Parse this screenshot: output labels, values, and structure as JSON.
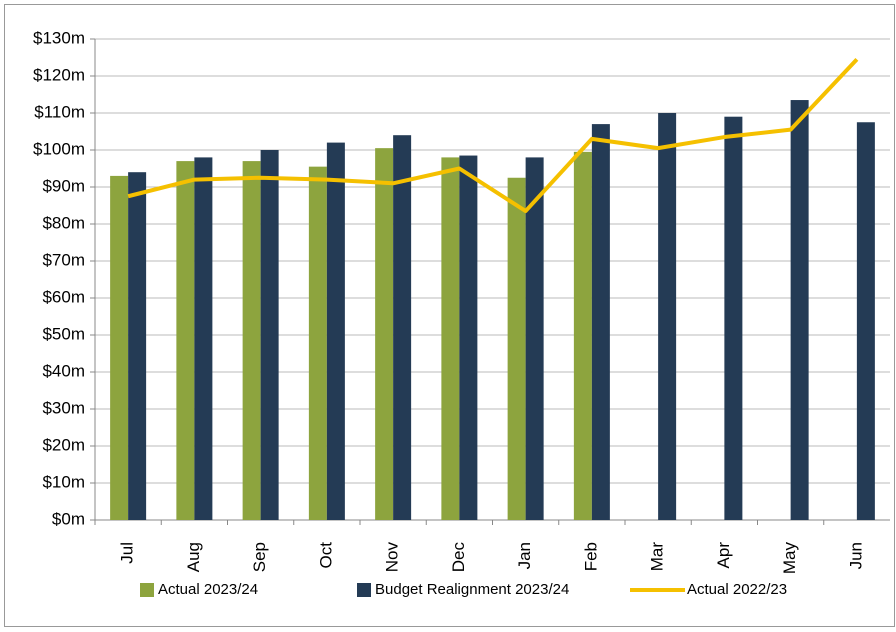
{
  "chart_data": {
    "type": "bar",
    "categories": [
      "Jul",
      "Aug",
      "Sep",
      "Oct",
      "Nov",
      "Dec",
      "Jan",
      "Feb",
      "Mar",
      "Apr",
      "May",
      "Jun"
    ],
    "series": [
      {
        "name": "Actual 2023/24",
        "type": "bar",
        "color": "#8da43e",
        "values": [
          93,
          97,
          97,
          95.5,
          100.5,
          98,
          92.5,
          99.5,
          null,
          null,
          null,
          null
        ]
      },
      {
        "name": "Budget Realignment 2023/24",
        "type": "bar",
        "color": "#243b55",
        "values": [
          94,
          98,
          100,
          102,
          104,
          98.5,
          98,
          107,
          110,
          109,
          113.5,
          107.5
        ]
      },
      {
        "name": "Actual 2022/23",
        "type": "line",
        "color": "#f5c000",
        "values": [
          87.5,
          92,
          92.5,
          92,
          91,
          95,
          83.5,
          103,
          100.5,
          103.5,
          105.5,
          124.5
        ]
      }
    ],
    "ylim": [
      0,
      130
    ],
    "yticks": [
      {
        "value": 0,
        "label": "$0m"
      },
      {
        "value": 10,
        "label": "$10m"
      },
      {
        "value": 20,
        "label": "$20m"
      },
      {
        "value": 30,
        "label": "$30m"
      },
      {
        "value": 40,
        "label": "$40m"
      },
      {
        "value": 50,
        "label": "$50m"
      },
      {
        "value": 60,
        "label": "$60m"
      },
      {
        "value": 70,
        "label": "$70m"
      },
      {
        "value": 80,
        "label": "$80m"
      },
      {
        "value": 90,
        "label": "$90m"
      },
      {
        "value": 100,
        "label": "$100m"
      },
      {
        "value": 110,
        "label": "$110m"
      },
      {
        "value": 120,
        "label": "$120m"
      },
      {
        "value": 130,
        "label": "$130m"
      }
    ],
    "grid": true
  }
}
